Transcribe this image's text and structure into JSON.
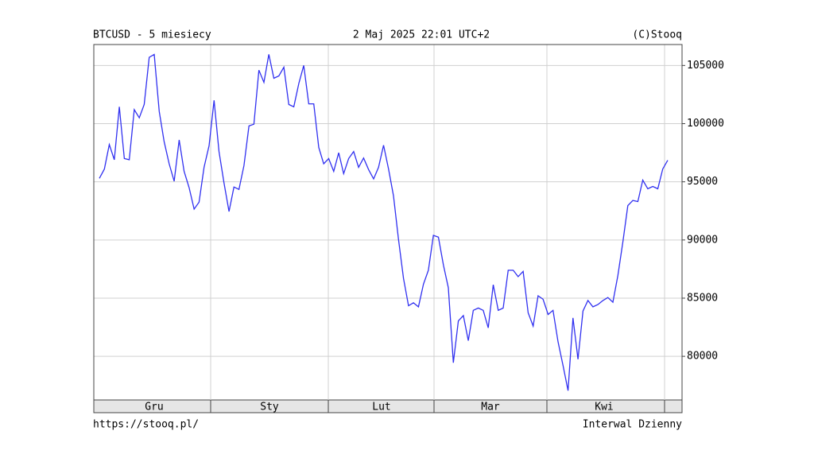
{
  "chart_data": {
    "type": "line",
    "title": "BTCUSD - 5 miesiecy",
    "subtitle": "2 Maj 2025 22:01 UTC+2",
    "source": "(C)Stooq",
    "url": "https://stooq.pl/",
    "interval": "Interwal Dzienny",
    "month_labels": [
      "Gru",
      "Sty",
      "Lut",
      "Mar",
      "Kwi"
    ],
    "series": [
      {
        "name": "BTCUSD",
        "color": "#3030f0",
        "values": [
          95300,
          96100,
          98200,
          96900,
          101450,
          97000,
          96900,
          101200,
          100500,
          101650,
          105700,
          105950,
          101050,
          98450,
          96550,
          95050,
          98600,
          95900,
          94500,
          92650,
          93250,
          96250,
          98100,
          102000,
          97600,
          94900,
          92450,
          94550,
          94350,
          96400,
          99800,
          99950,
          104600,
          103550,
          105950,
          103900,
          104100,
          104850,
          101650,
          101450,
          103450,
          105000,
          101700,
          101700,
          97950,
          96550,
          97000,
          95900,
          97500,
          95700,
          97000,
          97600,
          96250,
          97050,
          96050,
          95250,
          96250,
          98150,
          96100,
          93800,
          90050,
          86700,
          84350,
          84600,
          84250,
          86200,
          87400,
          90400,
          90250,
          87850,
          85900,
          79450,
          83050,
          83500,
          81350,
          83950,
          84150,
          83950,
          82450,
          86150,
          83950,
          84150,
          87400,
          87400,
          86850,
          87300,
          83750,
          82600,
          85200,
          84900,
          83600,
          83950,
          81250,
          79200,
          77050,
          83300,
          79750,
          83900,
          84800,
          84250,
          84450,
          84800,
          85050,
          84650,
          86950,
          89850,
          92950,
          93400,
          93300,
          95150,
          94400,
          94600,
          94400,
          96100,
          96850
        ]
      }
    ],
    "ylim": [
      76250,
      106800
    ],
    "yticks": [
      80000,
      85000,
      90000,
      95000,
      100000,
      105000
    ],
    "grid": true
  }
}
